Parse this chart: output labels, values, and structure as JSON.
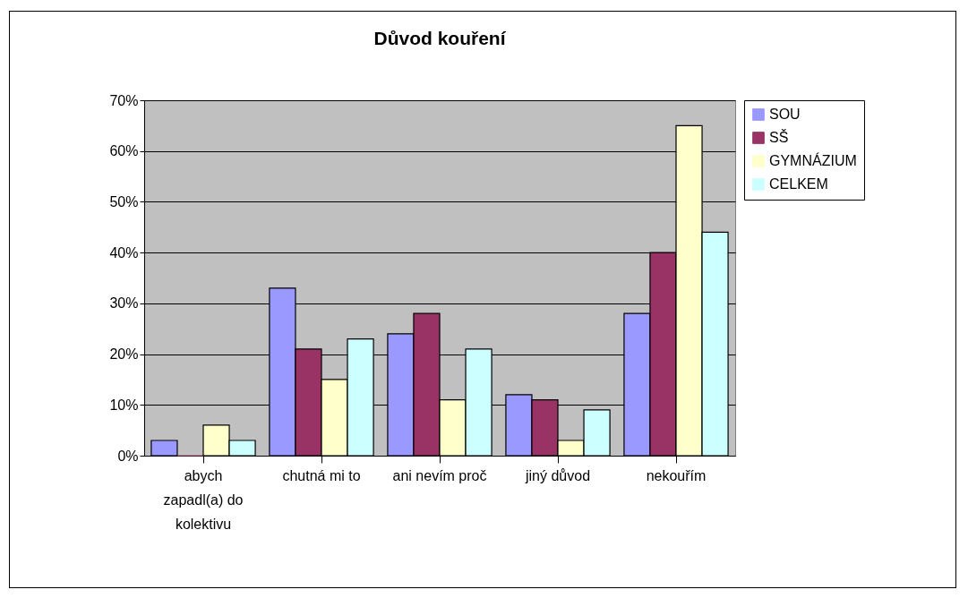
{
  "chart_data": {
    "type": "bar",
    "title": "Důvod kouření",
    "categories": [
      "abych zapadl(a) do kolektivu",
      "chutná mi to",
      "ani nevím proč",
      "jiný důvod",
      "nekouřím"
    ],
    "series": [
      {
        "name": "SOU",
        "color": "#9999ff",
        "values": [
          3,
          33,
          24,
          12,
          28
        ]
      },
      {
        "name": "SŠ",
        "color": "#993366",
        "values": [
          0,
          21,
          28,
          11,
          40
        ]
      },
      {
        "name": "GYMNÁZIUM",
        "color": "#ffffcc",
        "values": [
          6,
          15,
          11,
          3,
          65
        ]
      },
      {
        "name": "CELKEM",
        "color": "#ccffff",
        "values": [
          3,
          23,
          21,
          9,
          44
        ]
      }
    ],
    "ylim": [
      0,
      70
    ],
    "yticks": [
      {
        "value": 0,
        "label": "0%"
      },
      {
        "value": 10,
        "label": "10%"
      },
      {
        "value": 20,
        "label": "20%"
      },
      {
        "value": 30,
        "label": "30%"
      },
      {
        "value": 40,
        "label": "40%"
      },
      {
        "value": 50,
        "label": "50%"
      },
      {
        "value": 60,
        "label": "60%"
      },
      {
        "value": 70,
        "label": "70%"
      }
    ],
    "grid": "y",
    "legend": "right"
  }
}
